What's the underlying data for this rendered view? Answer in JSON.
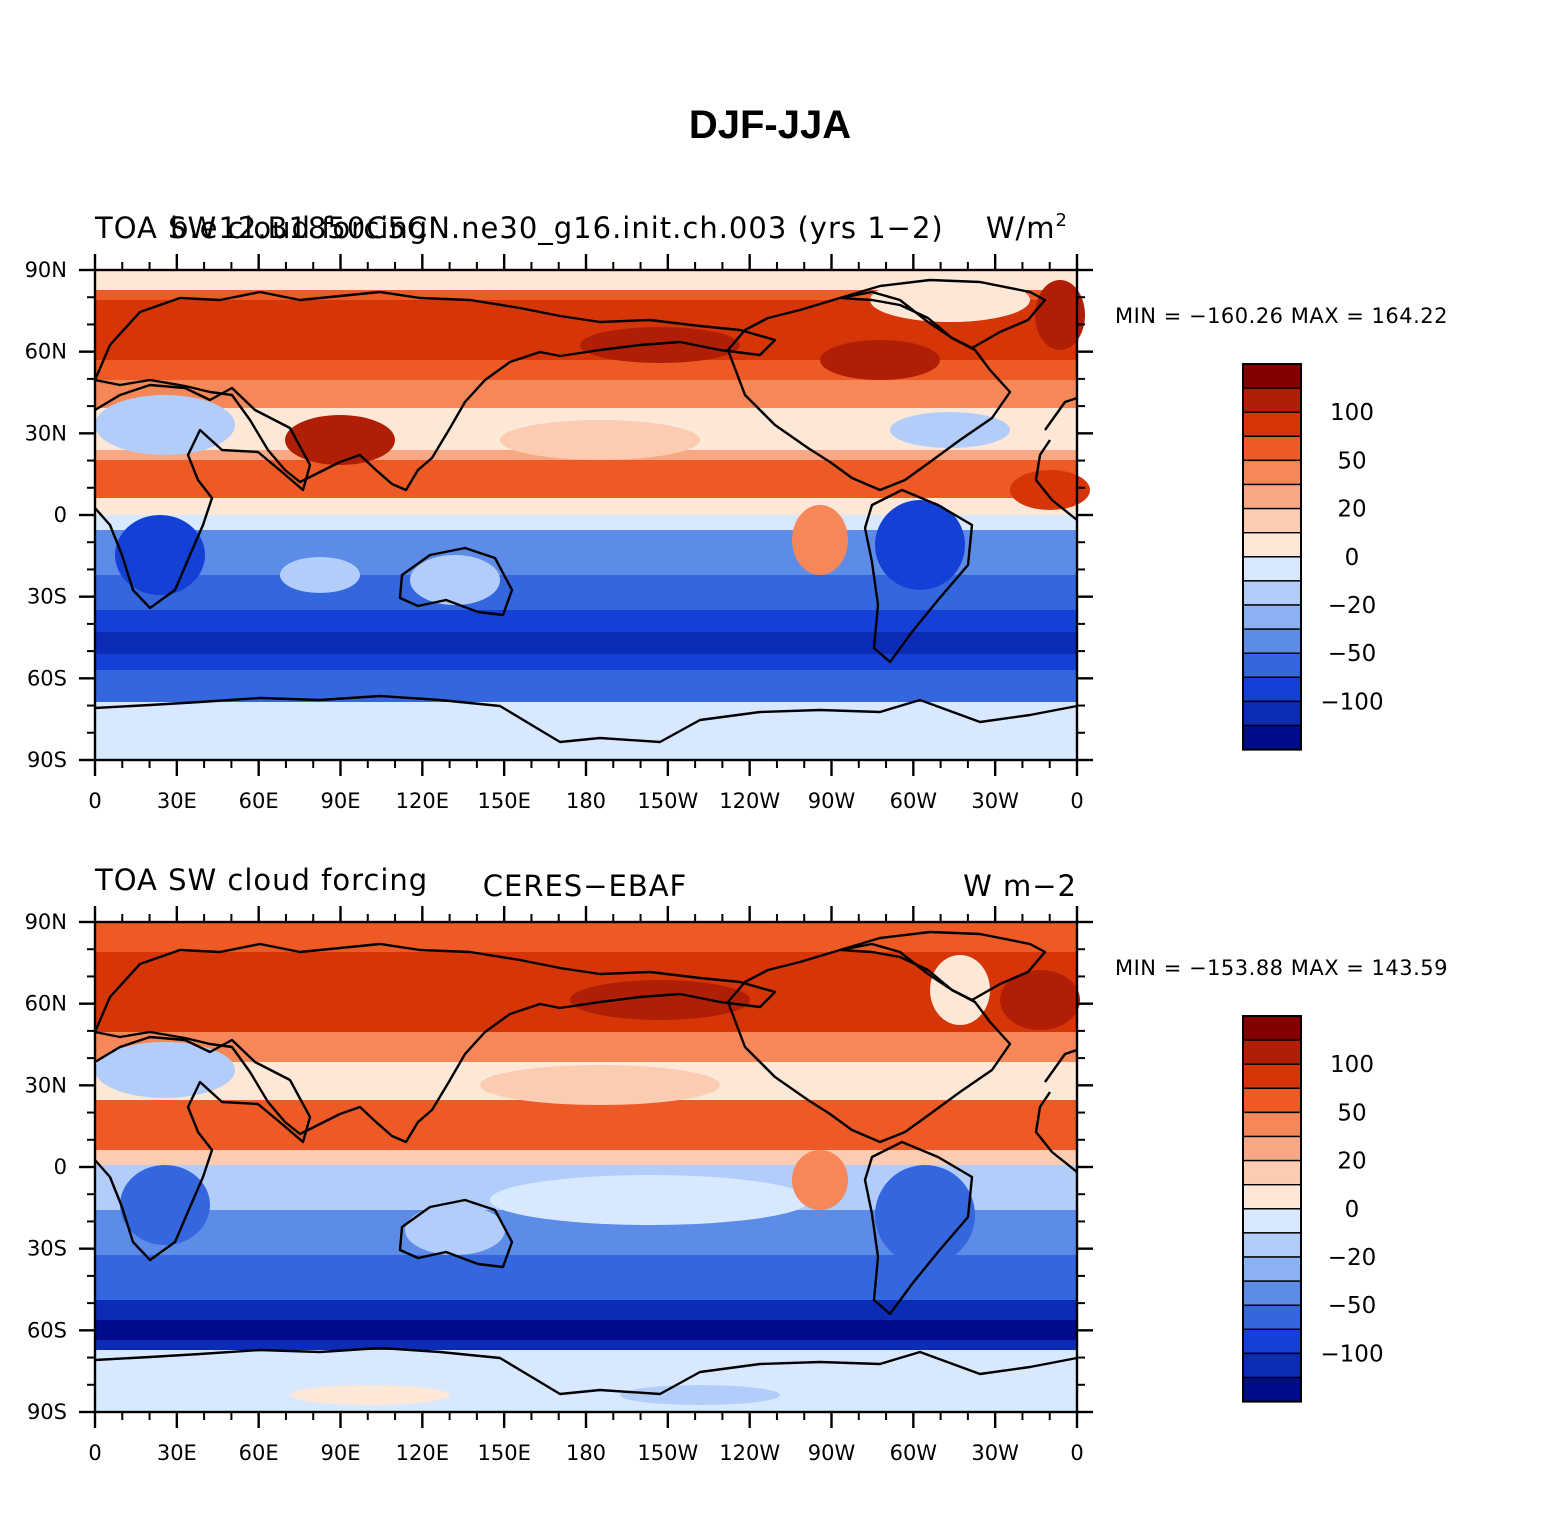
{
  "title": "DJF-JJA",
  "palette": [
    "#840000",
    "#b01f05",
    "#d63507",
    "#ed5a26",
    "#f58758",
    "#f8a785",
    "#fbcbb2",
    "#fde8d8",
    "#d8e9ff",
    "#b3cdfb",
    "#8bb0f4",
    "#5c8ce8",
    "#3466de",
    "#1440d5",
    "#0c2cb8",
    "#000d8a"
  ],
  "colorbar_labels": [
    "100",
    "50",
    "20",
    "0",
    "−20",
    "−50",
    "−100"
  ],
  "lat_ticks": [
    "90N",
    "60N",
    "30N",
    "0",
    "30S",
    "60S",
    "90S"
  ],
  "lon_ticks": [
    "0",
    "30E",
    "60E",
    "90E",
    "120E",
    "150E",
    "180",
    "150W",
    "120W",
    "90W",
    "60W",
    "30W",
    "0"
  ],
  "panels": [
    {
      "left_title": "TOA SW cloud forcing",
      "center_title": "b.e12.B1850C5CN.ne30_g16.init.ch.003 (yrs 1−2)",
      "right_title": "W/m",
      "right_title_sup": "2",
      "minmax": "MIN = −160.26  MAX = 164.22"
    },
    {
      "left_title": "TOA SW cloud forcing",
      "center_title": "CERES−EBAF",
      "right_title": "W m−2",
      "minmax": "MIN = −153.88  MAX = 143.59"
    }
  ]
}
